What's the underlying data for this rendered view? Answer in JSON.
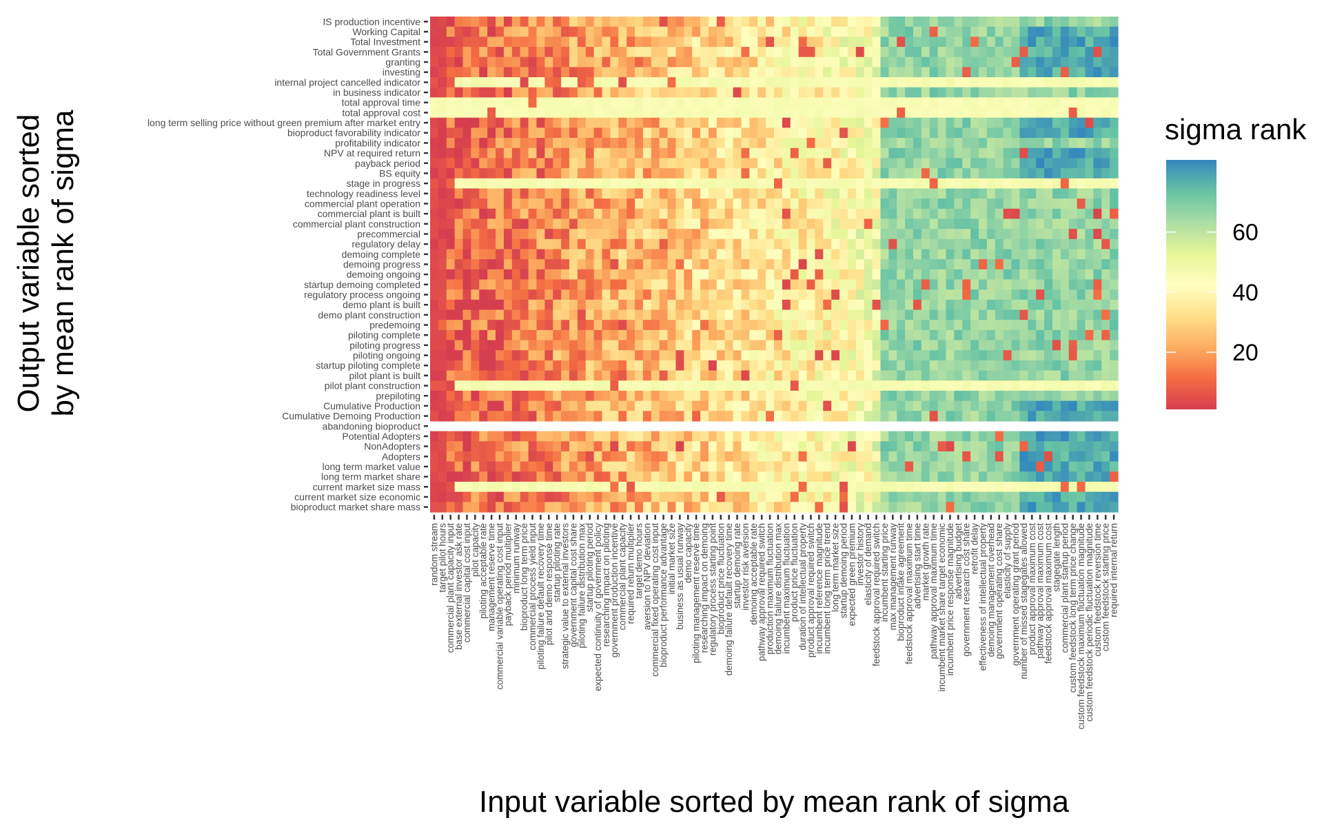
{
  "chart_data": {
    "type": "heatmap",
    "ylabel_lines": [
      "Output variable sorted",
      "by mean rank of sigma"
    ],
    "xlabel": "Input variable sorted by mean rank of sigma",
    "legend": {
      "title": "sigma rank",
      "ticks": [
        20,
        40,
        60
      ],
      "range": [
        1,
        84
      ],
      "colors": [
        "#d53e4f",
        "#f46d43",
        "#fdae61",
        "#fee08b",
        "#ffffbf",
        "#e6f598",
        "#abdda4",
        "#66c2a5",
        "#3288bd"
      ]
    },
    "y_categories": [
      "IS production incentive",
      "Working Capital",
      "Total Investment",
      "Total Government Grants",
      "granting",
      "investing",
      "internal project cancelled indicator",
      "in business indicator",
      "total approval time",
      "total approval cost",
      "long term selling price without green premium after market entry",
      "bioproduct favorability indicator",
      "profitability indicator",
      "NPV at required return",
      "payback period",
      "BS equity",
      "stage in progress",
      "technology readiness level",
      "commercial plant operation",
      "commercial plant is built",
      "commercial plant construction",
      "precommercial",
      "regulatory delay",
      "demoing complete",
      "demoing progress",
      "demoing ongoing",
      "startup demoing completed",
      "regulatory process ongoing",
      "demo plant is built",
      "demo plant construction",
      "predemoing",
      "piloting complete",
      "piloting progress",
      "piloting ongoing",
      "startup piloting complete",
      "pilot plant is built",
      "pilot plant construction",
      "prepiloting",
      "Cumulative Production",
      "Cumulative Demoing Production",
      "abandoning bioproduct",
      "Potential Adopters",
      "NonAdopters",
      "Adopters",
      "long term market value",
      "long term market share",
      "current market size mass",
      "current market size economic",
      "bioproduct market share mass"
    ],
    "x_categories": [
      "random stream",
      "target pilot hours",
      "commercial plant capacity input",
      "base external investor ask rate",
      "commercial capital cost input",
      "pilot capacity",
      "piloting acceptable rate",
      "management reserve time",
      "commercial variable operating cost input",
      "payback period multiplier",
      "minimum runway",
      "bioproduct long term price",
      "commercial process yield input",
      "piloting failure default recovery time",
      "pilot and demo response time",
      "startup piloting rate",
      "strategic value to external investors",
      "government capital cost share",
      "piloting failure distribution max",
      "startup piloting period",
      "expected continuity of government policy",
      "researching impact on piloting",
      "government production incentive",
      "commercial plant capacity",
      "required return multiplier",
      "target demo hours",
      "aversion to NPV deviation",
      "commercial fixed operating cost input",
      "bioproduct performance advantage",
      "initial market size",
      "business as usual runway",
      "demo capacity",
      "piloting management reserve time",
      "researching impact on demoing",
      "regulatory process starting point",
      "bioproduct price fluctuation",
      "demoing failure default recovery time",
      "startup demoing rate",
      "investor risk aversion",
      "demoing acceptable rate",
      "pathway approval required switch",
      "production maximum fluctuation",
      "demoing failure distribution max",
      "incumbent maximum fluctuation",
      "product price fluctuation",
      "duration of intellectual property",
      "product approval required switch",
      "incumbent reference magnitude",
      "incumbent long term price trend",
      "long term market size",
      "startup demoing period",
      "expected green premium",
      "investor history",
      "elasticity of demand",
      "feedstock approval required switch",
      "incumbent starting price",
      "max management runway",
      "bioproduct intake agreement",
      "feedstock approval maximum time",
      "advertising start time",
      "market growth rate",
      "pathway approval maximum time",
      "incumbent market share target economic",
      "incumbent price response magnitude",
      "advertising budget",
      "government research cost share",
      "retrofit delay",
      "effectiveness of intellectual property",
      "demoing management overhead",
      "government operating cost share",
      "elasticity of supply",
      "government operating grant period",
      "number of missed stagegates allowed",
      "product approval maximum cost",
      "pathway approval maximum cost",
      "feedstock approval maximum cost",
      "stagegate length",
      "commercial plant startup period",
      "custom feedstock long term price change",
      "custom feedstock maximum fluctuation magnitude",
      "custom feedstock periodic fluctuation magnitude",
      "custom feedstock reversion time",
      "custom feedstock starting price",
      "required internal return"
    ],
    "z_rank_note": "Each cell value is the sigma rank (1-84) of the input variable (column) for the output variable (row); estimated from cell colours.",
    "grid": false
  }
}
